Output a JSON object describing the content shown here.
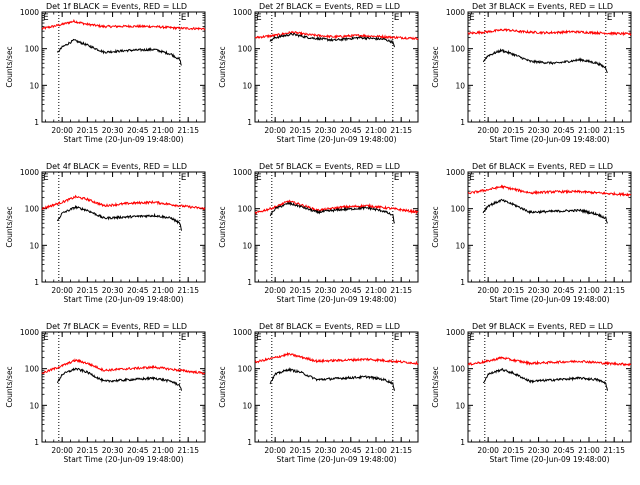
{
  "chart_data": [
    {
      "type": "line",
      "title": "Det 1f BLACK = Events, RED = LLD",
      "ylabel": "Counts/sec",
      "xlabel": "Start Time (20-Jun-09 19:48:00)",
      "yscale": "log",
      "ylim": [
        1,
        1000
      ],
      "xlim": [
        "19:48",
        "21:25"
      ],
      "y_ticks": [
        "1",
        "10",
        "100",
        "1000"
      ],
      "x_ticks": [
        "20:00",
        "20:15",
        "20:30",
        "20:45",
        "21:00",
        "21:15"
      ],
      "markers": [
        {
          "label": "E",
          "time": "19:48"
        },
        {
          "label": "E",
          "time": "21:10"
        }
      ],
      "vlines": [
        "19:58",
        "21:10"
      ],
      "grid": false,
      "series": [
        {
          "color": "#ff0000",
          "x": [
            "19:48",
            "20:00",
            "20:07",
            "20:14",
            "20:25",
            "20:40",
            "20:55",
            "21:10",
            "21:25"
          ],
          "values": [
            350,
            460,
            560,
            470,
            400,
            410,
            400,
            360,
            350
          ]
        },
        {
          "color": "#000000",
          "x": [
            "19:57",
            "20:00",
            "20:07",
            "20:14",
            "20:25",
            "20:40",
            "20:55",
            "21:05",
            "21:10",
            "21:11"
          ],
          "values": [
            75,
            110,
            170,
            130,
            80,
            90,
            95,
            70,
            50,
            35
          ]
        }
      ]
    },
    {
      "type": "line",
      "title": "Det 2f BLACK = Events, RED = LLD",
      "ylabel": "Counts/sec",
      "xlabel": "Start Time (20-Jun-09 19:48:00)",
      "yscale": "log",
      "ylim": [
        1,
        1000
      ],
      "xlim": [
        "19:48",
        "21:25"
      ],
      "y_ticks": [
        "1",
        "10",
        "100",
        "1000"
      ],
      "x_ticks": [
        "20:00",
        "20:15",
        "20:30",
        "20:45",
        "21:00",
        "21:15"
      ],
      "markers": [
        {
          "label": "E",
          "time": "19:48"
        },
        {
          "label": "E",
          "time": "21:10"
        }
      ],
      "vlines": [
        "19:58",
        "21:10"
      ],
      "grid": false,
      "series": [
        {
          "color": "#ff0000",
          "x": [
            "19:48",
            "20:00",
            "20:10",
            "20:20",
            "20:35",
            "20:50",
            "21:05",
            "21:25"
          ],
          "values": [
            200,
            230,
            280,
            240,
            210,
            230,
            210,
            190
          ]
        },
        {
          "color": "#000000",
          "x": [
            "19:57",
            "20:00",
            "20:10",
            "20:20",
            "20:35",
            "20:50",
            "21:05",
            "21:10",
            "21:11"
          ],
          "values": [
            160,
            200,
            250,
            200,
            170,
            200,
            180,
            150,
            110
          ]
        }
      ]
    },
    {
      "type": "line",
      "title": "Det 3f BLACK = Events, RED = LLD",
      "ylabel": "Counts/sec",
      "xlabel": "Start Time (20-Jun-09 19:48:00)",
      "yscale": "log",
      "ylim": [
        1,
        1000
      ],
      "xlim": [
        "19:48",
        "21:25"
      ],
      "y_ticks": [
        "1",
        "10",
        "100",
        "1000"
      ],
      "x_ticks": [
        "20:00",
        "20:15",
        "20:30",
        "20:45",
        "21:00",
        "21:15"
      ],
      "markers": [
        {
          "label": "E",
          "time": "19:48"
        },
        {
          "label": "E",
          "time": "21:10"
        }
      ],
      "vlines": [
        "19:58",
        "21:10"
      ],
      "grid": false,
      "series": [
        {
          "color": "#ff0000",
          "x": [
            "19:48",
            "20:00",
            "20:10",
            "20:20",
            "20:35",
            "20:50",
            "21:05",
            "21:25"
          ],
          "values": [
            260,
            290,
            330,
            290,
            270,
            290,
            270,
            250
          ]
        },
        {
          "color": "#000000",
          "x": [
            "19:57",
            "20:00",
            "20:08",
            "20:15",
            "20:25",
            "20:40",
            "20:55",
            "21:05",
            "21:10",
            "21:11"
          ],
          "values": [
            45,
            65,
            90,
            70,
            45,
            40,
            50,
            40,
            30,
            22
          ]
        }
      ]
    },
    {
      "type": "line",
      "title": "Det 4f BLACK = Events, RED = LLD",
      "ylabel": "Counts/sec",
      "xlabel": "Start Time (20-Jun-09 19:48:00)",
      "yscale": "log",
      "ylim": [
        1,
        1000
      ],
      "xlim": [
        "19:48",
        "21:25"
      ],
      "y_ticks": [
        "1",
        "10",
        "100",
        "1000"
      ],
      "x_ticks": [
        "20:00",
        "20:15",
        "20:30",
        "20:45",
        "21:00",
        "21:15"
      ],
      "markers": [
        {
          "label": "E",
          "time": "19:48"
        },
        {
          "label": "E",
          "time": "21:10"
        }
      ],
      "vlines": [
        "19:58",
        "21:10"
      ],
      "grid": false,
      "series": [
        {
          "color": "#ff0000",
          "x": [
            "19:48",
            "20:00",
            "20:08",
            "20:15",
            "20:25",
            "20:40",
            "20:55",
            "21:10",
            "21:25"
          ],
          "values": [
            100,
            150,
            210,
            180,
            120,
            140,
            150,
            120,
            100
          ]
        },
        {
          "color": "#000000",
          "x": [
            "19:57",
            "20:00",
            "20:08",
            "20:15",
            "20:25",
            "20:40",
            "20:55",
            "21:05",
            "21:10",
            "21:11"
          ],
          "values": [
            45,
            75,
            110,
            90,
            55,
            60,
            65,
            55,
            40,
            25
          ]
        }
      ]
    },
    {
      "type": "line",
      "title": "Det 5f BLACK = Events, RED = LLD",
      "ylabel": "Counts/sec",
      "xlabel": "Start Time (20-Jun-09 19:48:00)",
      "yscale": "log",
      "ylim": [
        1,
        1000
      ],
      "xlim": [
        "19:48",
        "21:25"
      ],
      "y_ticks": [
        "1",
        "10",
        "100",
        "1000"
      ],
      "x_ticks": [
        "20:00",
        "20:15",
        "20:30",
        "20:45",
        "21:00",
        "21:15"
      ],
      "markers": [
        {
          "label": "E",
          "time": "19:48"
        },
        {
          "label": "E",
          "time": "21:10"
        }
      ],
      "vlines": [
        "19:58",
        "21:10"
      ],
      "grid": false,
      "series": [
        {
          "color": "#ff0000",
          "x": [
            "19:48",
            "20:00",
            "20:08",
            "20:15",
            "20:25",
            "20:40",
            "20:55",
            "21:10",
            "21:25"
          ],
          "values": [
            75,
            110,
            160,
            130,
            90,
            110,
            120,
            100,
            80
          ]
        },
        {
          "color": "#000000",
          "x": [
            "19:57",
            "20:00",
            "20:08",
            "20:15",
            "20:25",
            "20:40",
            "20:55",
            "21:05",
            "21:10",
            "21:11"
          ],
          "values": [
            65,
            100,
            140,
            115,
            80,
            95,
            105,
            85,
            65,
            40
          ]
        }
      ]
    },
    {
      "type": "line",
      "title": "Det 6f BLACK = Events, RED = LLD",
      "ylabel": "Counts/sec",
      "xlabel": "Start Time (20-Jun-09 19:48:00)",
      "yscale": "log",
      "ylim": [
        1,
        1000
      ],
      "xlim": [
        "19:48",
        "21:25"
      ],
      "y_ticks": [
        "1",
        "10",
        "100",
        "1000"
      ],
      "x_ticks": [
        "20:00",
        "20:15",
        "20:30",
        "20:45",
        "21:00",
        "21:15"
      ],
      "markers": [
        {
          "label": "E",
          "time": "19:48"
        },
        {
          "label": "E",
          "time": "21:10"
        }
      ],
      "vlines": [
        "19:58",
        "21:10"
      ],
      "grid": false,
      "series": [
        {
          "color": "#ff0000",
          "x": [
            "19:48",
            "20:00",
            "20:08",
            "20:15",
            "20:25",
            "20:40",
            "20:55",
            "21:10",
            "21:25"
          ],
          "values": [
            260,
            330,
            400,
            340,
            270,
            290,
            290,
            260,
            240
          ]
        },
        {
          "color": "#000000",
          "x": [
            "19:57",
            "20:00",
            "20:08",
            "20:15",
            "20:25",
            "20:40",
            "20:55",
            "21:05",
            "21:10",
            "21:11"
          ],
          "values": [
            80,
            120,
            170,
            130,
            80,
            85,
            90,
            70,
            55,
            40
          ]
        }
      ]
    },
    {
      "type": "line",
      "title": "Det 7f BLACK = Events, RED = LLD",
      "ylabel": "Counts/sec",
      "xlabel": "Start Time (20-Jun-09 19:48:00)",
      "yscale": "log",
      "ylim": [
        1,
        1000
      ],
      "xlim": [
        "19:48",
        "21:25"
      ],
      "y_ticks": [
        "1",
        "10",
        "100",
        "1000"
      ],
      "x_ticks": [
        "20:00",
        "20:15",
        "20:30",
        "20:45",
        "21:00",
        "21:15"
      ],
      "markers": [
        {
          "label": "E",
          "time": "19:48"
        },
        {
          "label": "E",
          "time": "21:10"
        }
      ],
      "vlines": [
        "19:58",
        "21:10"
      ],
      "grid": false,
      "series": [
        {
          "color": "#ff0000",
          "x": [
            "19:48",
            "20:00",
            "20:08",
            "20:15",
            "20:25",
            "20:40",
            "20:55",
            "21:10",
            "21:25"
          ],
          "values": [
            75,
            120,
            170,
            140,
            90,
            100,
            110,
            90,
            75
          ]
        },
        {
          "color": "#000000",
          "x": [
            "19:57",
            "20:00",
            "20:08",
            "20:15",
            "20:25",
            "20:40",
            "20:55",
            "21:05",
            "21:10",
            "21:11"
          ],
          "values": [
            40,
            70,
            100,
            80,
            45,
            50,
            55,
            45,
            35,
            25
          ]
        }
      ]
    },
    {
      "type": "line",
      "title": "Det 8f BLACK = Events, RED = LLD",
      "ylabel": "Counts/sec",
      "xlabel": "Start Time (20-Jun-09 19:48:00)",
      "yscale": "log",
      "ylim": [
        1,
        1000
      ],
      "xlim": [
        "19:48",
        "21:25"
      ],
      "y_ticks": [
        "1",
        "10",
        "100",
        "1000"
      ],
      "x_ticks": [
        "20:00",
        "20:15",
        "20:30",
        "20:45",
        "21:00",
        "21:15"
      ],
      "markers": [
        {
          "label": "E",
          "time": "19:48"
        },
        {
          "label": "E",
          "time": "21:10"
        }
      ],
      "vlines": [
        "19:58",
        "21:10"
      ],
      "grid": false,
      "series": [
        {
          "color": "#ff0000",
          "x": [
            "19:48",
            "20:00",
            "20:08",
            "20:15",
            "20:25",
            "20:40",
            "20:55",
            "21:10",
            "21:25"
          ],
          "values": [
            150,
            200,
            250,
            210,
            160,
            170,
            180,
            160,
            140
          ]
        },
        {
          "color": "#000000",
          "x": [
            "19:57",
            "20:00",
            "20:08",
            "20:15",
            "20:25",
            "20:40",
            "20:55",
            "21:05",
            "21:10",
            "21:11"
          ],
          "values": [
            40,
            70,
            95,
            80,
            50,
            55,
            60,
            50,
            40,
            25
          ]
        }
      ]
    },
    {
      "type": "line",
      "title": "Det 9f BLACK = Events, RED = LLD",
      "ylabel": "Counts/sec",
      "xlabel": "Start Time (20-Jun-09 19:48:00)",
      "yscale": "log",
      "ylim": [
        1,
        1000
      ],
      "xlim": [
        "19:48",
        "21:25"
      ],
      "y_ticks": [
        "1",
        "10",
        "100",
        "1000"
      ],
      "x_ticks": [
        "20:00",
        "20:15",
        "20:30",
        "20:45",
        "21:00",
        "21:15"
      ],
      "markers": [
        {
          "label": "E",
          "time": "19:48"
        },
        {
          "label": "E",
          "time": "21:10"
        }
      ],
      "vlines": [
        "19:58",
        "21:10"
      ],
      "grid": false,
      "series": [
        {
          "color": "#ff0000",
          "x": [
            "19:48",
            "20:00",
            "20:08",
            "20:15",
            "20:25",
            "20:40",
            "20:55",
            "21:10",
            "21:25"
          ],
          "values": [
            130,
            160,
            200,
            170,
            140,
            150,
            160,
            140,
            130
          ]
        },
        {
          "color": "#000000",
          "x": [
            "19:57",
            "20:00",
            "20:08",
            "20:15",
            "20:25",
            "20:40",
            "20:55",
            "21:05",
            "21:10",
            "21:11"
          ],
          "values": [
            40,
            70,
            95,
            75,
            45,
            50,
            55,
            50,
            40,
            25
          ]
        }
      ]
    }
  ]
}
